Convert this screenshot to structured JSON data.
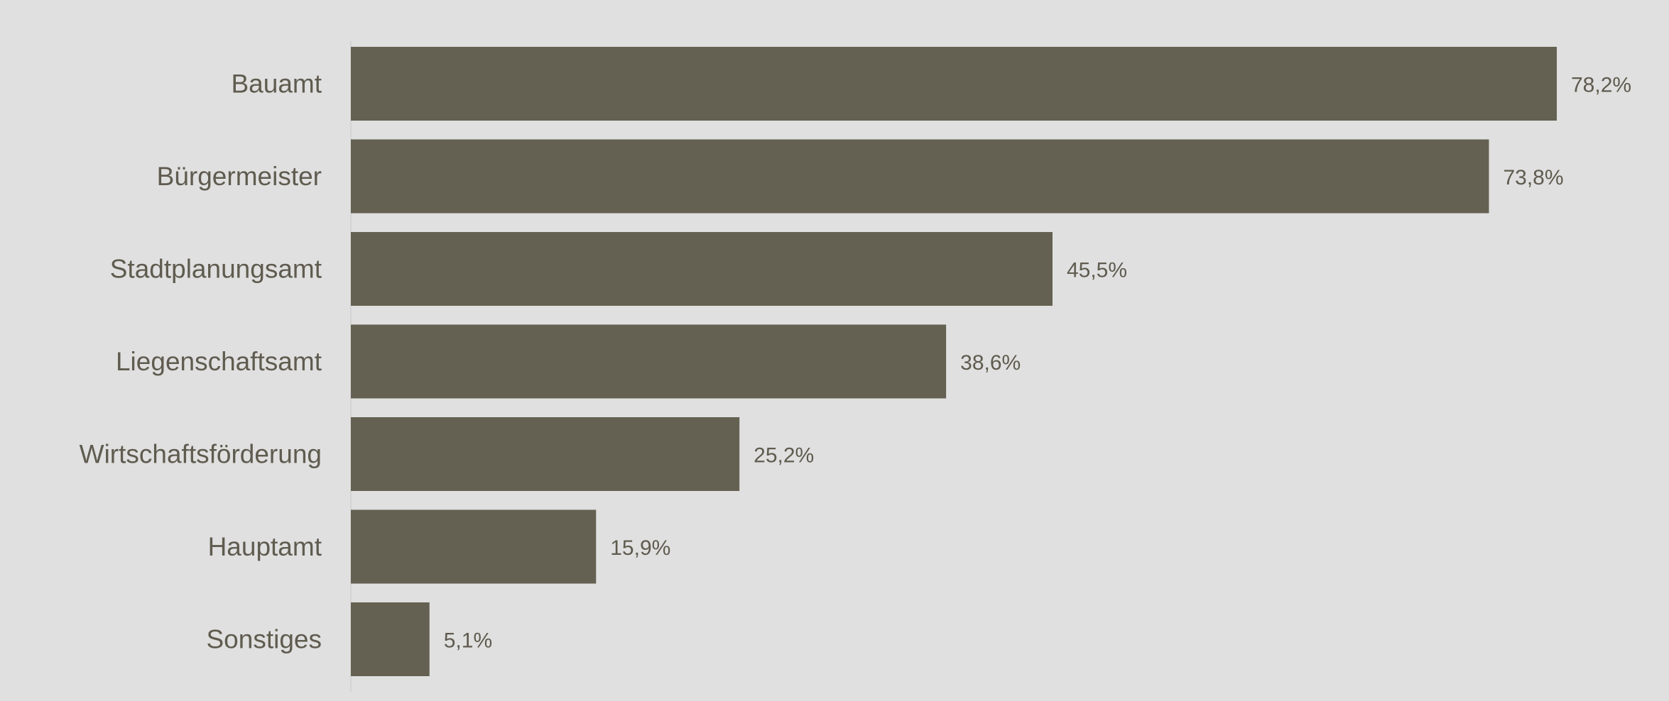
{
  "chart_data": {
    "type": "bar",
    "orientation": "horizontal",
    "categories": [
      "Bauamt",
      "Bürgermeister",
      "Stadtplanungsamt",
      "Liegenschaftsamt",
      "Wirtschaftsförderung",
      "Hauptamt",
      "Sonstiges"
    ],
    "values": [
      78.2,
      73.8,
      45.5,
      38.6,
      25.2,
      15.9,
      5.1
    ],
    "value_labels": [
      "78,2%",
      "73,8%",
      "45,5%",
      "38,6%",
      "25,2%",
      "15,9%",
      "5,1%"
    ],
    "unit": "%",
    "title": "",
    "xlabel": "",
    "ylabel": "",
    "xlim": [
      0,
      80
    ],
    "grid": false,
    "legend": "none",
    "colors": {
      "background": "#e0e0e0",
      "bar": "#656152",
      "text": "#5f5b4f",
      "axis": "#cfcfcf"
    }
  }
}
